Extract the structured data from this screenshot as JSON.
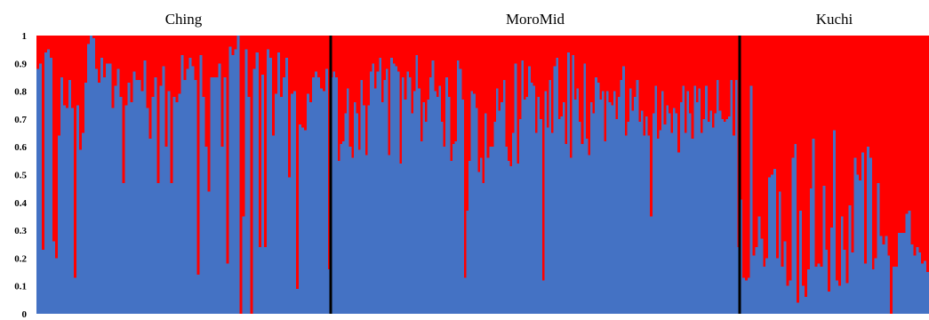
{
  "chart_data": {
    "type": "bar",
    "stacked": true,
    "normalized": true,
    "ylim": [
      0,
      1
    ],
    "yticks": [
      "0",
      "0.1",
      "0.2",
      "0.3",
      "0.4",
      "0.5",
      "0.6",
      "0.7",
      "0.8",
      "0.9",
      "1"
    ],
    "colors": {
      "blue": "#4472C4",
      "red": "#FF0000",
      "separator": "#000000"
    },
    "groups": [
      {
        "label": "Ching",
        "blue": [
          0.88,
          0.9,
          0.23,
          0.94,
          0.95,
          0.92,
          0.26,
          0.2,
          0.64,
          0.85,
          0.75,
          0.74,
          0.84,
          0.74,
          0.13,
          0.75,
          0.59,
          0.65,
          0.83,
          0.97,
          1.0,
          0.99,
          0.88,
          0.83,
          0.92,
          0.85,
          0.9,
          0.9,
          0.74,
          0.82,
          0.88,
          0.78,
          0.47,
          0.75,
          0.83,
          0.76,
          0.87,
          0.84,
          0.84,
          0.8,
          0.91,
          0.74,
          0.63,
          0.78,
          0.85,
          0.47,
          0.82,
          0.89,
          0.6,
          0.8,
          0.47,
          0.78,
          0.76,
          0.79,
          0.93,
          0.84,
          0.88,
          0.92,
          0.89,
          0.84,
          0.14,
          0.93,
          0.78,
          0.6,
          0.44,
          0.85,
          0.85,
          0.85,
          0.9,
          0.6,
          0.85,
          0.18,
          0.96,
          0.93,
          0.95,
          1.0,
          0.0,
          0.35,
          0.95,
          0.78,
          0.0,
          0.88,
          0.94,
          0.24,
          0.86,
          0.24,
          0.95,
          0.92,
          0.64,
          0.79,
          0.94,
          0.78,
          0.85,
          0.92,
          0.49,
          0.79,
          0.8,
          0.09,
          0.68,
          0.67,
          0.66,
          0.79,
          0.76,
          0.85,
          0.87,
          0.85,
          0.81,
          0.8,
          0.88,
          0.16
        ]
      },
      {
        "label": "MoroMid",
        "blue": [
          0.85,
          0.87,
          0.85,
          0.55,
          0.61,
          0.62,
          0.72,
          0.81,
          0.6,
          0.56,
          0.76,
          0.72,
          0.59,
          0.84,
          0.75,
          0.57,
          0.75,
          0.87,
          0.9,
          0.81,
          0.87,
          0.92,
          0.76,
          0.84,
          0.88,
          0.57,
          0.92,
          0.9,
          0.89,
          0.87,
          0.54,
          0.85,
          0.77,
          0.87,
          0.85,
          0.72,
          0.8,
          0.93,
          0.81,
          0.62,
          0.76,
          0.69,
          0.77,
          0.85,
          0.91,
          0.8,
          0.78,
          0.82,
          0.69,
          0.6,
          0.85,
          0.78,
          0.55,
          0.61,
          0.62,
          0.91,
          0.88,
          0.77,
          0.13,
          0.37,
          0.55,
          0.8,
          0.79,
          0.74,
          0.51,
          0.56,
          0.47,
          0.72,
          0.56,
          0.6,
          0.6,
          0.69,
          0.81,
          0.73,
          0.76,
          0.84,
          0.6,
          0.55,
          0.53,
          0.65,
          0.9,
          0.54,
          0.7,
          0.91,
          0.77,
          0.78,
          0.89,
          0.83,
          0.82,
          0.65,
          0.78,
          0.7,
          0.12,
          0.8,
          0.67,
          0.84,
          0.65,
          0.89,
          0.92,
          0.7,
          0.71,
          0.76,
          0.61,
          0.94,
          0.56,
          0.93,
          0.77,
          0.81,
          0.69,
          0.61,
          0.9,
          0.63,
          0.57,
          0.76,
          0.72,
          0.85,
          0.83,
          0.77,
          0.8,
          0.62,
          0.8,
          0.76,
          0.75,
          0.8,
          0.7,
          0.78,
          0.84,
          0.89,
          0.64,
          0.69,
          0.81,
          0.73,
          0.78,
          0.84,
          0.69,
          0.73,
          0.64,
          0.71,
          0.64,
          0.35,
          0.72,
          0.82,
          0.63,
          0.66,
          0.8,
          0.68,
          0.75,
          0.72,
          0.65,
          0.74,
          0.72,
          0.58,
          0.76,
          0.82,
          0.65,
          0.8,
          0.72,
          0.63,
          0.82,
          0.76,
          0.81,
          0.65,
          0.7,
          0.82,
          0.69,
          0.73,
          0.67,
          0.72,
          0.84,
          0.73,
          0.7,
          0.69,
          0.7,
          0.71,
          0.84,
          0.64,
          0.84,
          0.24
        ]
      },
      {
        "label": "Kuchi",
        "blue": [
          0.41,
          0.13,
          0.12,
          0.13,
          0.82,
          0.21,
          0.24,
          0.35,
          0.27,
          0.17,
          0.2,
          0.49,
          0.5,
          0.52,
          0.2,
          0.44,
          0.17,
          0.26,
          0.1,
          0.12,
          0.56,
          0.61,
          0.04,
          0.37,
          0.1,
          0.06,
          0.16,
          0.45,
          0.63,
          0.17,
          0.18,
          0.17,
          0.46,
          0.23,
          0.08,
          0.31,
          0.66,
          0.12,
          0.1,
          0.35,
          0.23,
          0.11,
          0.39,
          0.22,
          0.56,
          0.5,
          0.48,
          0.58,
          0.18,
          0.6,
          0.56,
          0.16,
          0.2,
          0.47,
          0.28,
          0.25,
          0.28,
          0.21,
          0.0,
          0.17,
          0.17,
          0.29,
          0.29,
          0.29,
          0.36,
          0.37,
          0.25,
          0.21,
          0.24,
          0.22,
          0.18,
          0.19,
          0.15
        ]
      }
    ]
  }
}
